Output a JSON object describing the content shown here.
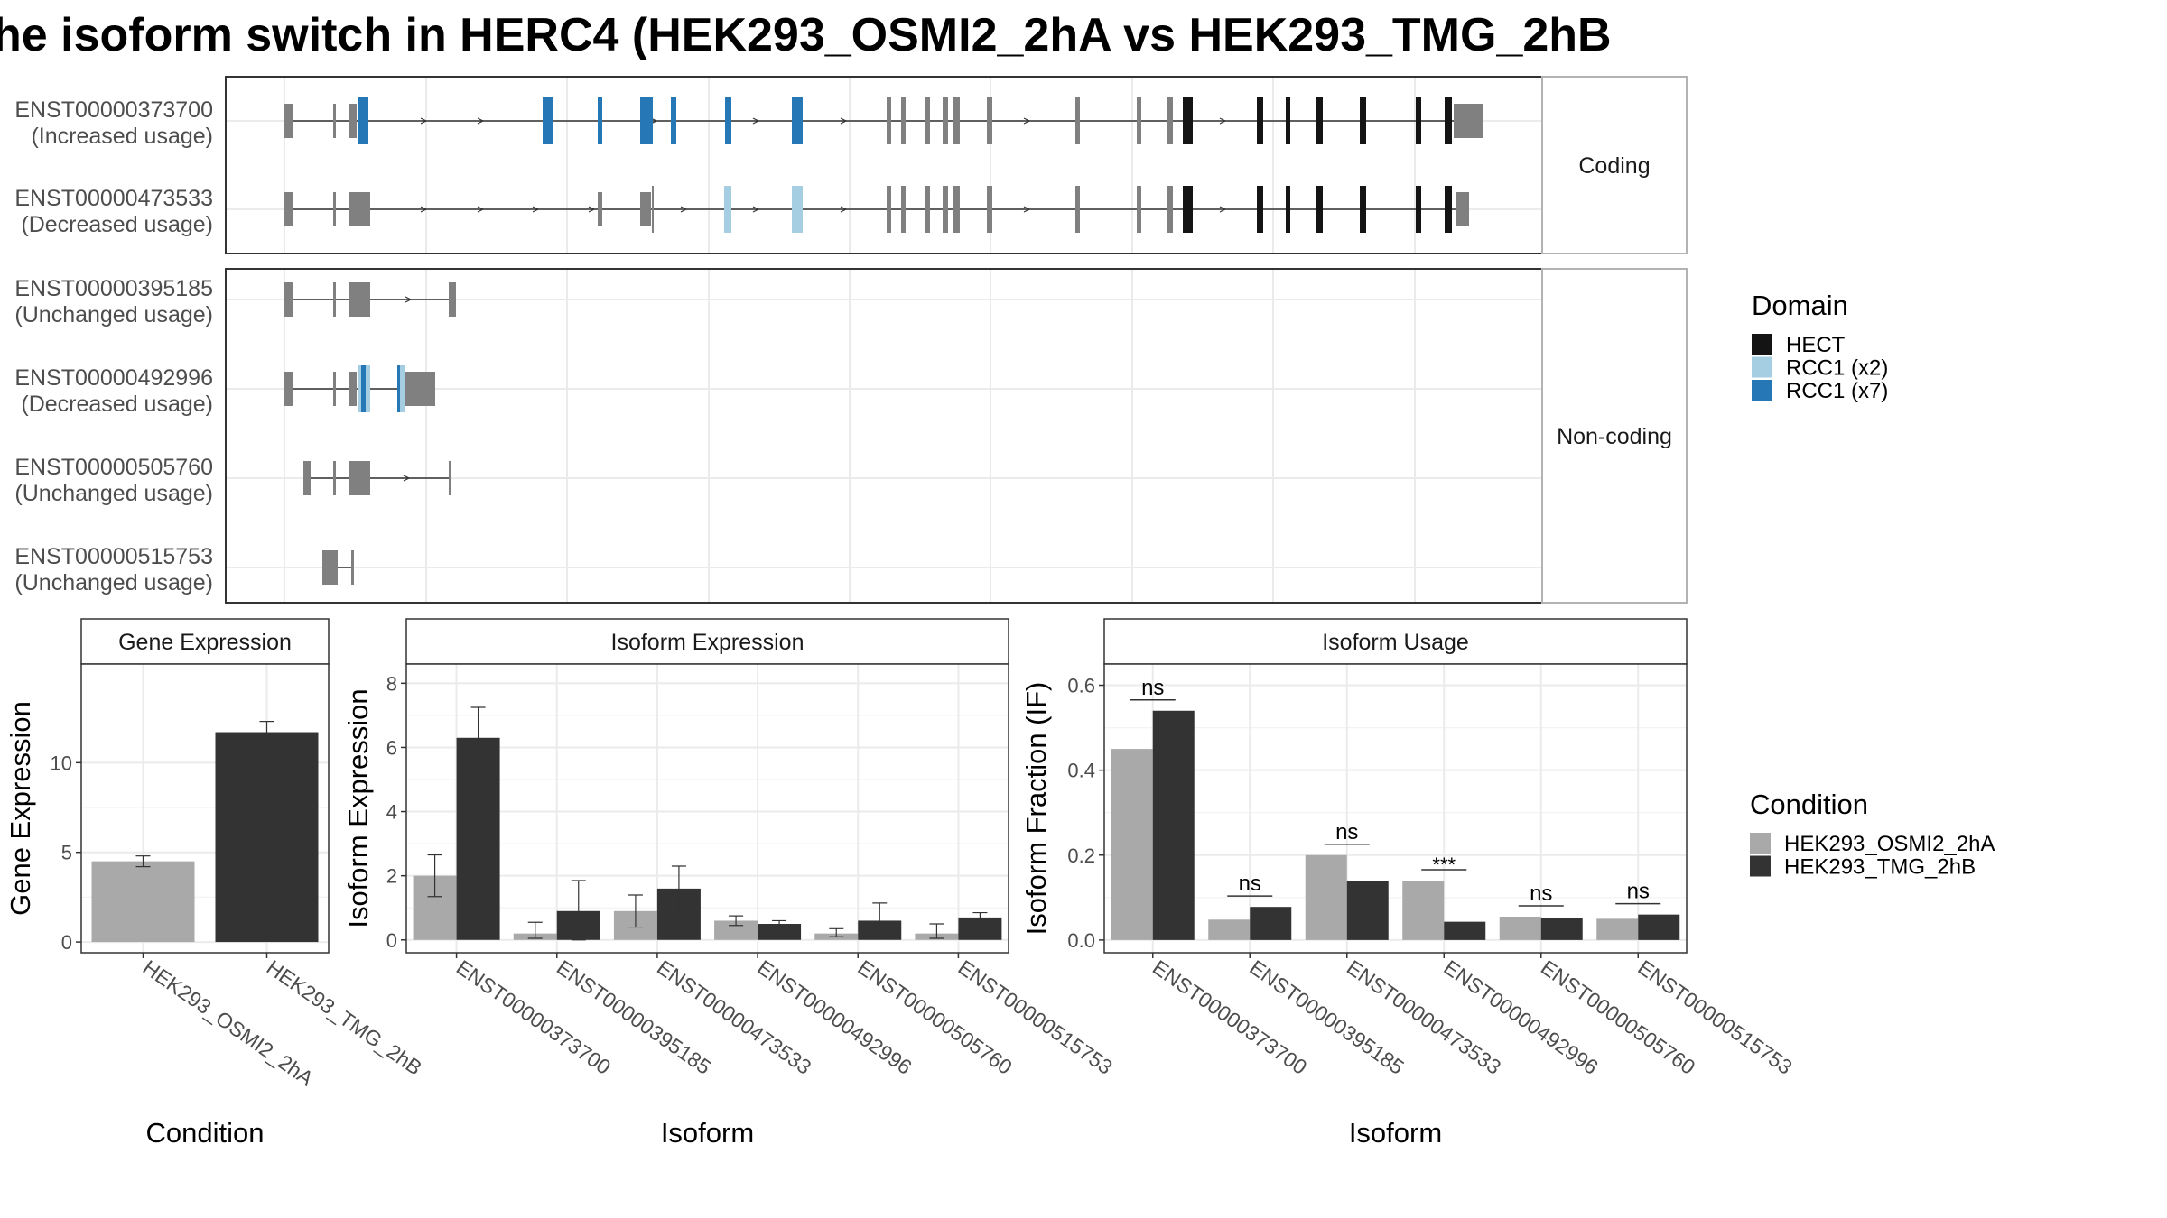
{
  "title": "he isoform switch in HERC4 (HEK293_OSMI2_2hA vs HEK293_TMG_2hB",
  "colors": {
    "RCC1_x7": "#2577b5",
    "RCC1_x2": "#a5cee3",
    "HECT": "#141414",
    "exon": "#808080",
    "cond1": "#a9a9a9",
    "cond2": "#333333"
  },
  "chart_data": [
    {
      "type": "gene-structure",
      "rows": [
        {
          "id": "ENST00000373700",
          "usage": "(Increased usage)",
          "group": "Coding"
        },
        {
          "id": "ENST00000473533",
          "usage": "(Decreased usage)",
          "group": "Coding"
        },
        {
          "id": "ENST00000395185",
          "usage": "(Unchanged usage)",
          "group": "Non-coding"
        },
        {
          "id": "ENST00000492996",
          "usage": "(Decreased usage)",
          "group": "Non-coding"
        },
        {
          "id": "ENST00000505760",
          "usage": "(Unchanged usage)",
          "group": "Non-coding"
        },
        {
          "id": "ENST00000515753",
          "usage": "(Unchanged usage)",
          "group": "Non-coding"
        }
      ],
      "facets": [
        "Coding",
        "Non-coding"
      ],
      "legend": {
        "title": "Domain",
        "entries": [
          {
            "label": "HECT",
            "color": "#141414"
          },
          {
            "label": "RCC1 (x2)",
            "color": "#a5cee3"
          },
          {
            "label": "RCC1 (x7)",
            "color": "#2577b5"
          }
        ]
      }
    },
    {
      "type": "bar",
      "title": "Gene Expression",
      "xlabel": "Condition",
      "ylabel": "Gene Expression",
      "categories": [
        "HEK293_OSMI2_2hA",
        "HEK293_TMG_2hB"
      ],
      "values": [
        4.5,
        11.7
      ],
      "errors": [
        [
          4.2,
          4.8
        ],
        [
          11.1,
          12.3
        ]
      ],
      "ylim": [
        -0.6,
        15.5
      ],
      "yticks": [
        0,
        5,
        10
      ]
    },
    {
      "type": "bar",
      "title": "Isoform Expression",
      "xlabel": "Isoform",
      "ylabel": "Isoform Expression",
      "categories": [
        "ENST00000373700",
        "ENST00000395185",
        "ENST00000473533",
        "ENST00000492996",
        "ENST00000505760",
        "ENST00000515753"
      ],
      "series": [
        {
          "name": "HEK293_OSMI2_2hA",
          "values": [
            2.0,
            0.2,
            0.9,
            0.6,
            0.2,
            0.2
          ],
          "errors": [
            [
              1.35,
              2.65
            ],
            [
              0.05,
              0.55
            ],
            [
              0.4,
              1.4
            ],
            [
              0.45,
              0.75
            ],
            [
              0.1,
              0.35
            ],
            [
              0.05,
              0.5
            ]
          ]
        },
        {
          "name": "HEK293_TMG_2hB",
          "values": [
            6.3,
            0.9,
            1.6,
            0.5,
            0.6,
            0.7
          ],
          "errors": [
            [
              5.4,
              7.25
            ],
            [
              0.0,
              1.85
            ],
            [
              0.85,
              2.3
            ],
            [
              0.4,
              0.6
            ],
            [
              0.05,
              1.15
            ],
            [
              0.55,
              0.85
            ]
          ]
        }
      ],
      "ylim": [
        -0.4,
        8.6
      ],
      "yticks": [
        0,
        2,
        4,
        6,
        8
      ]
    },
    {
      "type": "bar",
      "title": "Isoform Usage",
      "xlabel": "Isoform",
      "ylabel": "Isoform Fraction (IF)",
      "categories": [
        "ENST00000373700",
        "ENST00000395185",
        "ENST00000473533",
        "ENST00000492996",
        "ENST00000505760",
        "ENST00000515753"
      ],
      "series": [
        {
          "name": "HEK293_OSMI2_2hA",
          "values": [
            0.45,
            0.048,
            0.2,
            0.14,
            0.055,
            0.05
          ]
        },
        {
          "name": "HEK293_TMG_2hB",
          "values": [
            0.54,
            0.078,
            0.14,
            0.043,
            0.052,
            0.06
          ]
        }
      ],
      "annotations": [
        "ns",
        "ns",
        "ns",
        "***",
        "ns",
        "ns"
      ],
      "ylim": [
        -0.03,
        0.65
      ],
      "yticks": [
        0.0,
        0.2,
        0.4,
        0.6
      ]
    }
  ],
  "condition_legend": {
    "title": "Condition",
    "entries": [
      {
        "label": "HEK293_OSMI2_2hA",
        "color": "#a9a9a9"
      },
      {
        "label": "HEK293_TMG_2hB",
        "color": "#333333"
      }
    ]
  }
}
